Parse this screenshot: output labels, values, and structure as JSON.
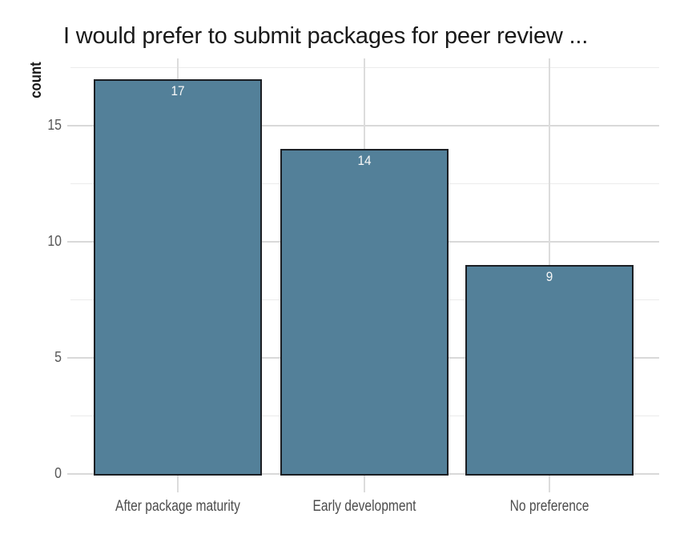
{
  "chart_data": {
    "type": "bar",
    "title": "I would prefer to submit packages for peer review ...",
    "ylabel": "count",
    "xlabel": "",
    "categories": [
      "After package maturity",
      "Early development",
      "No preference"
    ],
    "values": [
      17,
      14,
      9
    ],
    "bar_value_labels": [
      "17",
      "14",
      "9"
    ],
    "yticks_major": [
      0,
      5,
      10,
      15
    ],
    "yticks_minor": [
      2.5,
      7.5,
      12.5,
      17.5
    ],
    "ylim": [
      -0.85,
      17.85
    ],
    "grid": "on",
    "legend": "none",
    "colors": {
      "bar_fill": "#538099",
      "bar_stroke": "#1b1e23",
      "grid_major": "#d9d9d9",
      "grid_minor": "#ebebeb",
      "grid_vertical": "#dcdcdc",
      "title_text": "#191919",
      "axis_text": "#4c4c4c",
      "bar_label_text": "#f7f7f7",
      "background": "#ffffff"
    }
  }
}
